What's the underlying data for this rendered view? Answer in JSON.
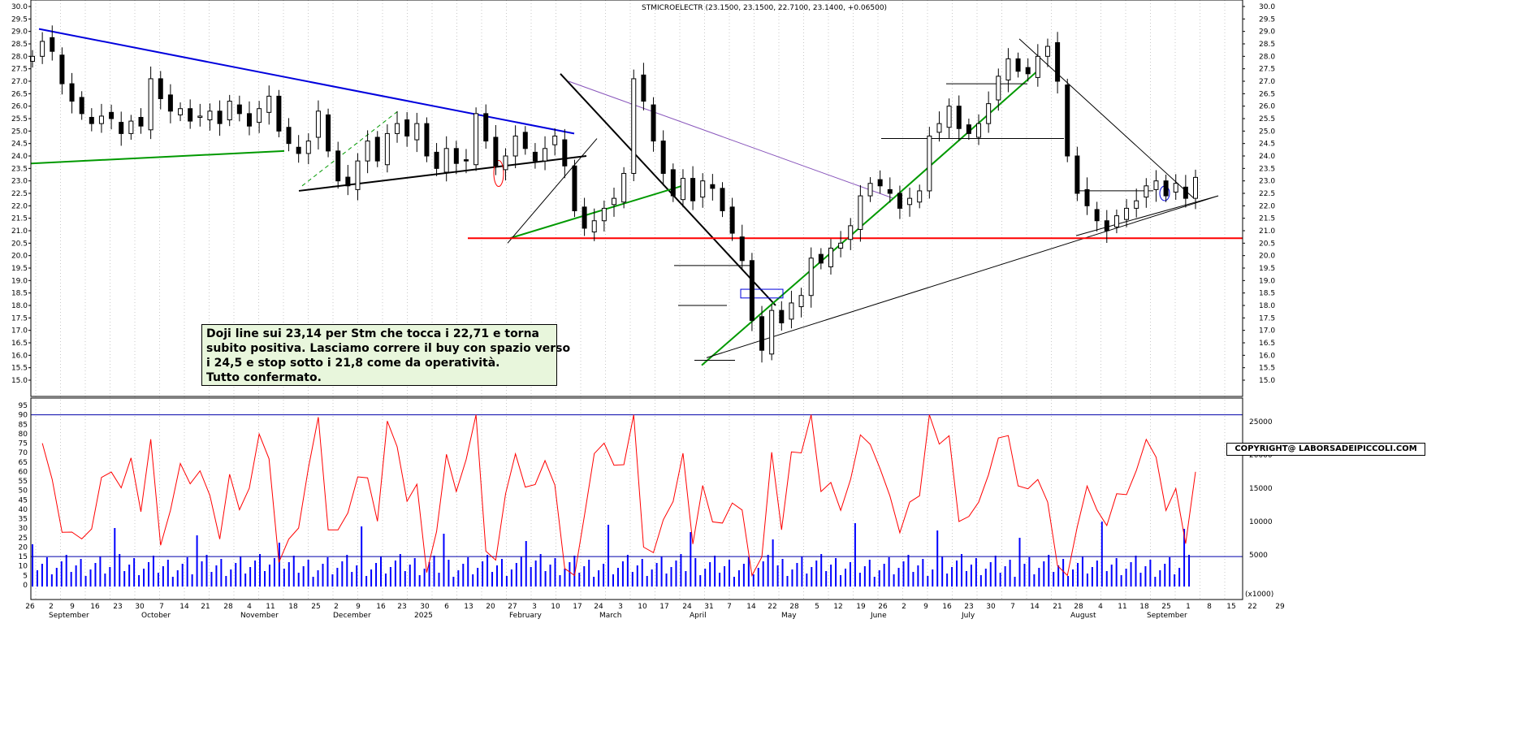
{
  "header": {
    "text": "STMICROELECTR (23.1500, 23.1500, 22.7100, 23.1400, +0.06500)"
  },
  "annotation": {
    "lines": [
      "Doji line sui 23,14 per Stm che tocca i 22,71 e torna",
      "subito positiva. Lasciamo correre il buy con spazio verso",
      "i 24,5 e stop sotto i 21,8 come da operatività.",
      "Tutto confermato."
    ]
  },
  "copyright": {
    "text": "COPYRIGHT@ LABORSADEIPICCOLI.COM"
  },
  "colors": {
    "volume": "#0000ff",
    "rsi": "#ff0000",
    "support": "#009900",
    "resistance": "#0000dd",
    "level_line": "#ff0000",
    "trend": "#000000",
    "channel": "#8855bb"
  },
  "chart_data": [
    {
      "type": "candlestick",
      "ylim": [
        15.0,
        30.0
      ],
      "y_ticks": [
        "30.0",
        "29.5",
        "29.0",
        "28.5",
        "28.0",
        "27.5",
        "27.0",
        "26.5",
        "26.0",
        "25.5",
        "25.0",
        "24.5",
        "24.0",
        "23.5",
        "23.0",
        "22.5",
        "22.0",
        "21.5",
        "21.0",
        "20.5",
        "20.0",
        "19.5",
        "19.0",
        "18.5",
        "18.0",
        "17.5",
        "17.0",
        "16.5",
        "16.0",
        "15.5",
        "15.0"
      ],
      "x_tick_labels": [
        "26",
        "2",
        "9",
        "16",
        "23",
        "30",
        "7",
        "14",
        "21",
        "28",
        "4",
        "11",
        "18",
        "25",
        "2",
        "9",
        "16",
        "23",
        "30",
        "6",
        "13",
        "20",
        "27",
        "3",
        "10",
        "17",
        "24",
        "3",
        "10",
        "17",
        "24",
        "31",
        "7",
        "14",
        "22",
        "28",
        "5",
        "12",
        "19",
        "26",
        "2",
        "9",
        "16",
        "23",
        "30",
        "7",
        "14",
        "21",
        "28",
        "4",
        "11",
        "18",
        "25",
        "1",
        "8",
        "15",
        "22",
        "29"
      ],
      "month_labels": [
        "September",
        "October",
        "November",
        "December",
        "2025",
        "February",
        "March",
        "April",
        "May",
        "June",
        "July",
        "August",
        "September"
      ],
      "horizontal_levels": [
        20.7
      ],
      "close_series": [
        28.0,
        28.6,
        28.2,
        26.9,
        26.2,
        25.7,
        25.3,
        25.6,
        25.5,
        24.9,
        25.4,
        25.2,
        27.1,
        26.3,
        25.8,
        25.9,
        25.4,
        25.6,
        25.8,
        25.3,
        26.2,
        25.7,
        25.2,
        25.9,
        26.4,
        25.0,
        24.5,
        24.1,
        24.6,
        25.8,
        24.2,
        23.0,
        22.8,
        23.8,
        24.6,
        23.8,
        24.9,
        25.3,
        24.8,
        25.3,
        24.0,
        23.5,
        24.3,
        23.7,
        23.8,
        25.7,
        24.6,
        23.6,
        24.0,
        24.8,
        24.3,
        23.8,
        24.3,
        24.8,
        23.6,
        21.8,
        21.1,
        21.4,
        21.9,
        22.3,
        23.3,
        27.1,
        26.2,
        24.6,
        23.3,
        22.4,
        23.1,
        22.2,
        23.0,
        22.7,
        21.8,
        20.9,
        19.8,
        17.4,
        16.2,
        17.8,
        17.3,
        18.1,
        18.4,
        19.9,
        19.7,
        20.3,
        20.5,
        21.2,
        22.4,
        22.9,
        22.8,
        22.5,
        21.9,
        22.3,
        22.6,
        24.8,
        25.3,
        26.0,
        25.1,
        24.9,
        25.3,
        26.1,
        27.2,
        27.9,
        27.4,
        27.3,
        28.0,
        28.4,
        27.0,
        24.0,
        22.5,
        22.0,
        21.4,
        21.0,
        21.6,
        21.9,
        22.2,
        22.8,
        23.0,
        22.4,
        22.9,
        22.3,
        23.14
      ],
      "volume_ticks": [
        "25000",
        "20000",
        "15000",
        "10000",
        "5000"
      ],
      "rsi_ticks": [
        "95",
        "90",
        "85",
        "80",
        "75",
        "70",
        "65",
        "60",
        "55",
        "50",
        "45",
        "40",
        "35",
        "30",
        "25",
        "20",
        "15",
        "10",
        "5",
        "0"
      ],
      "rsi_levels": [
        90,
        15
      ],
      "volume_tag": "(x1000)"
    }
  ]
}
